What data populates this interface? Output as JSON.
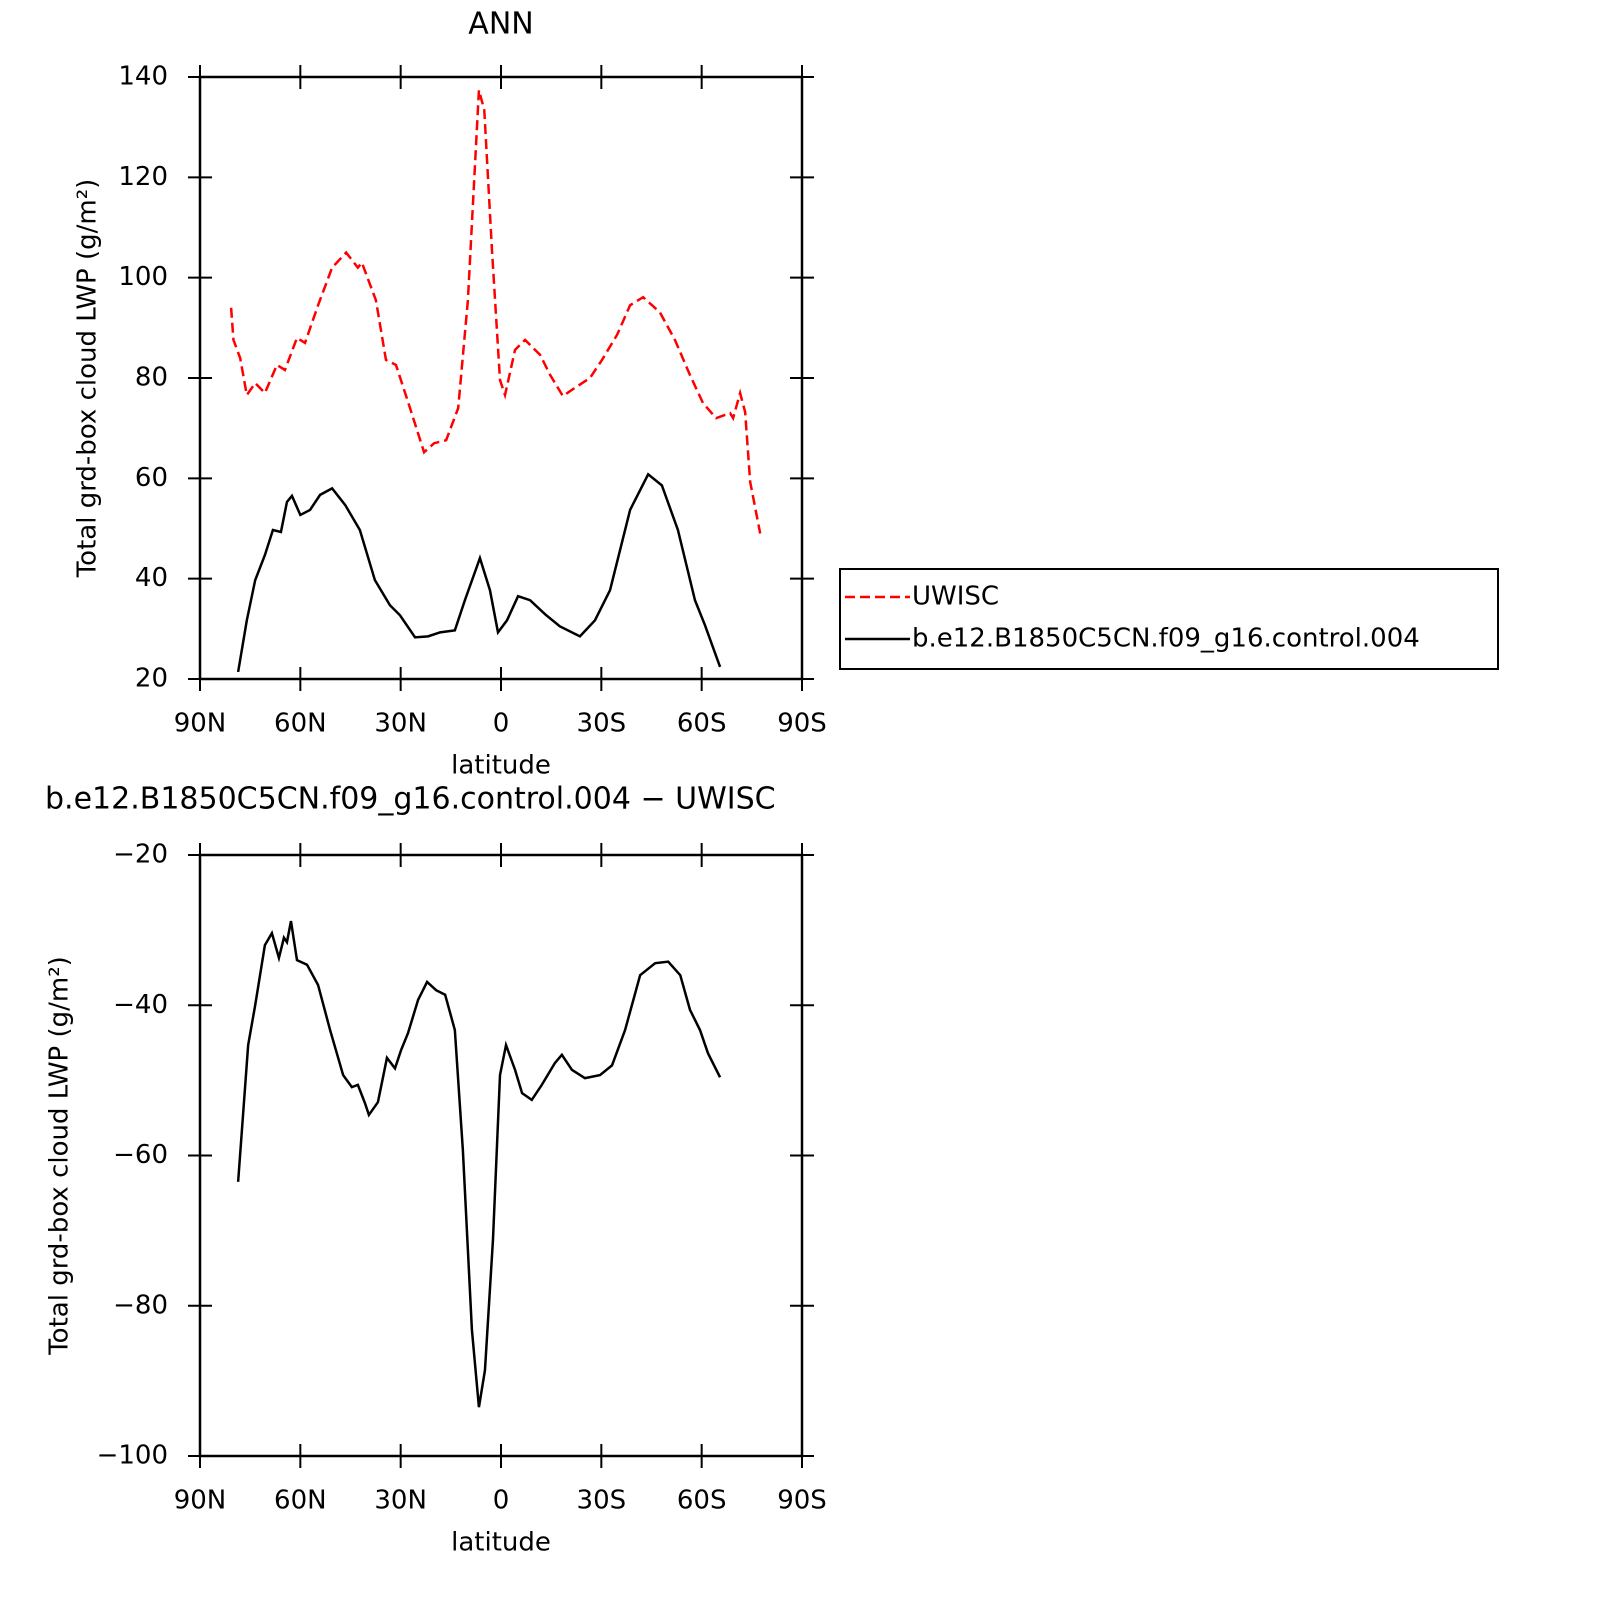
{
  "chart_data": [
    {
      "type": "line",
      "title": "ANN",
      "xlabel": "latitude",
      "ylabel": "Total grd-box cloud LWP (g/m²)",
      "xlim": [
        90,
        -90
      ],
      "xticks": [
        {
          "value": 90,
          "label": "90N"
        },
        {
          "value": 60,
          "label": "60N"
        },
        {
          "value": 30,
          "label": "30N"
        },
        0,
        {
          "value": -30,
          "label": "30S"
        },
        {
          "value": -60,
          "label": "60S"
        },
        {
          "value": -90,
          "label": "90S"
        }
      ],
      "ylim": [
        20,
        140
      ],
      "yticks": [
        20,
        40,
        60,
        80,
        100,
        120,
        140
      ],
      "legend": "right",
      "series": [
        {
          "name": "UWISC",
          "color": "#ff0000",
          "line_style": "dashed",
          "x": [
            80.7,
            80,
            78,
            76,
            73.5,
            70.6,
            67,
            64.6,
            61,
            58.6,
            54.7,
            50.5,
            46.3,
            42.8,
            41.6,
            37.4,
            34.4,
            31.4,
            27.2,
            23,
            20,
            16.4,
            12.8,
            9.9,
            6.6,
            5,
            2.7,
            0.3,
            -1.2,
            -4.2,
            -7.2,
            -11.7,
            -14.7,
            -18.5,
            -22,
            -26.6,
            -30.2,
            -34.7,
            -38.6,
            -42.5,
            -47.5,
            -52,
            -56.5,
            -60.4,
            -64.3,
            -68.5,
            -69.4,
            -71.5,
            -73,
            -74.5,
            -77.5
          ],
          "values": [
            94,
            87.6,
            84,
            76.6,
            79,
            77,
            82.6,
            81.6,
            88,
            87,
            94.5,
            102,
            105,
            102,
            103,
            95.5,
            83.6,
            82.6,
            74,
            65.2,
            67,
            67.6,
            74,
            95.5,
            137.4,
            133.4,
            105.5,
            79.6,
            76.6,
            85.6,
            87.6,
            84.6,
            80.6,
            76.4,
            78,
            80,
            83.6,
            88.6,
            94.5,
            96.1,
            93.1,
            87.6,
            80.6,
            75,
            72,
            73,
            72,
            77,
            73.2,
            59.3,
            49
          ]
        },
        {
          "name": "b.e12.B1850C5CN.f09_g16.control.004",
          "color": "#000000",
          "line_style": "solid",
          "x": [
            78.6,
            76,
            73.5,
            70.6,
            68.2,
            65.8,
            64,
            62.5,
            60,
            57.1,
            54.1,
            50.5,
            46.6,
            42.2,
            37.7,
            33.2,
            30.2,
            25.7,
            21.8,
            18.2,
            13.8,
            10.8,
            6.3,
            3.3,
            0.9,
            -1.8,
            -5.1,
            -8.7,
            -13.2,
            -17.6,
            -23.6,
            -28.1,
            -32.6,
            -38.6,
            -44,
            -48.1,
            -52.9,
            -58,
            -61,
            -65.5
          ],
          "values": [
            21.4,
            31.7,
            39.7,
            44.7,
            49.7,
            49.3,
            55.3,
            56.5,
            52.7,
            53.7,
            56.7,
            58,
            54.7,
            49.7,
            39.7,
            34.7,
            32.7,
            28.3,
            28.5,
            29.3,
            29.7,
            35.7,
            44.1,
            37.7,
            29.3,
            31.7,
            36.5,
            35.7,
            32.9,
            30.5,
            28.5,
            31.7,
            37.7,
            53.7,
            60.8,
            58.6,
            49.7,
            35.7,
            30.7,
            22.4
          ]
        }
      ]
    },
    {
      "type": "line",
      "title": "b.e12.B1850C5CN.f09_g16.control.004 − UWISC",
      "xlabel": "latitude",
      "ylabel": "Total grd-box cloud LWP (g/m²)",
      "xlim": [
        90,
        -90
      ],
      "xticks": [
        {
          "value": 90,
          "label": "90N"
        },
        {
          "value": 60,
          "label": "60N"
        },
        {
          "value": 30,
          "label": "30N"
        },
        0,
        {
          "value": -30,
          "label": "30S"
        },
        {
          "value": -60,
          "label": "60S"
        },
        {
          "value": -90,
          "label": "90S"
        }
      ],
      "ylim": [
        -100,
        -20
      ],
      "yticks": [
        {
          "value": -100,
          "label": "−100"
        },
        {
          "value": -80,
          "label": "−80"
        },
        {
          "value": -60,
          "label": "−60"
        },
        {
          "value": -40,
          "label": "−40"
        },
        {
          "value": -20,
          "label": "−20"
        }
      ],
      "series": [
        {
          "color": "#000000",
          "line_style": "solid",
          "x": [
            78.6,
            75.6,
            73.5,
            70.6,
            68.5,
            66.4,
            64.9,
            64,
            62.8,
            61,
            58,
            54.7,
            51.1,
            47.2,
            44.6,
            42.8,
            40.7,
            39.5,
            36.8,
            34.1,
            31.7,
            29.9,
            27.8,
            24.8,
            22.1,
            19.4,
            16.7,
            13.8,
            11.4,
            8.7,
            6.6,
            4.8,
            2.4,
            0.3,
            -1.5,
            -4.2,
            -6.3,
            -9.2,
            -12.2,
            -16.1,
            -18.2,
            -21.2,
            -25.1,
            -29.6,
            -33.2,
            -37.1,
            -41.6,
            -46.1,
            -50,
            -53.6,
            -56.5,
            -59.5,
            -61.9,
            -65.5
          ],
          "values": [
            -63.5,
            -45.3,
            -40,
            -32,
            -30.4,
            -33.7,
            -31,
            -31.6,
            -28.8,
            -34,
            -34.6,
            -37.3,
            -43.3,
            -49.3,
            -50.9,
            -50.6,
            -53,
            -54.6,
            -52.9,
            -47,
            -48.4,
            -46,
            -43.7,
            -39.3,
            -36.9,
            -38,
            -38.6,
            -43.3,
            -59.3,
            -83.2,
            -93.5,
            -88.6,
            -71.2,
            -49.3,
            -45.3,
            -48.6,
            -51.7,
            -52.6,
            -50.6,
            -47.7,
            -46.6,
            -48.6,
            -49.7,
            -49.3,
            -48,
            -43.3,
            -36,
            -34.4,
            -34.2,
            -36,
            -40.6,
            -43.3,
            -46.4,
            -49.6
          ]
        }
      ]
    }
  ]
}
